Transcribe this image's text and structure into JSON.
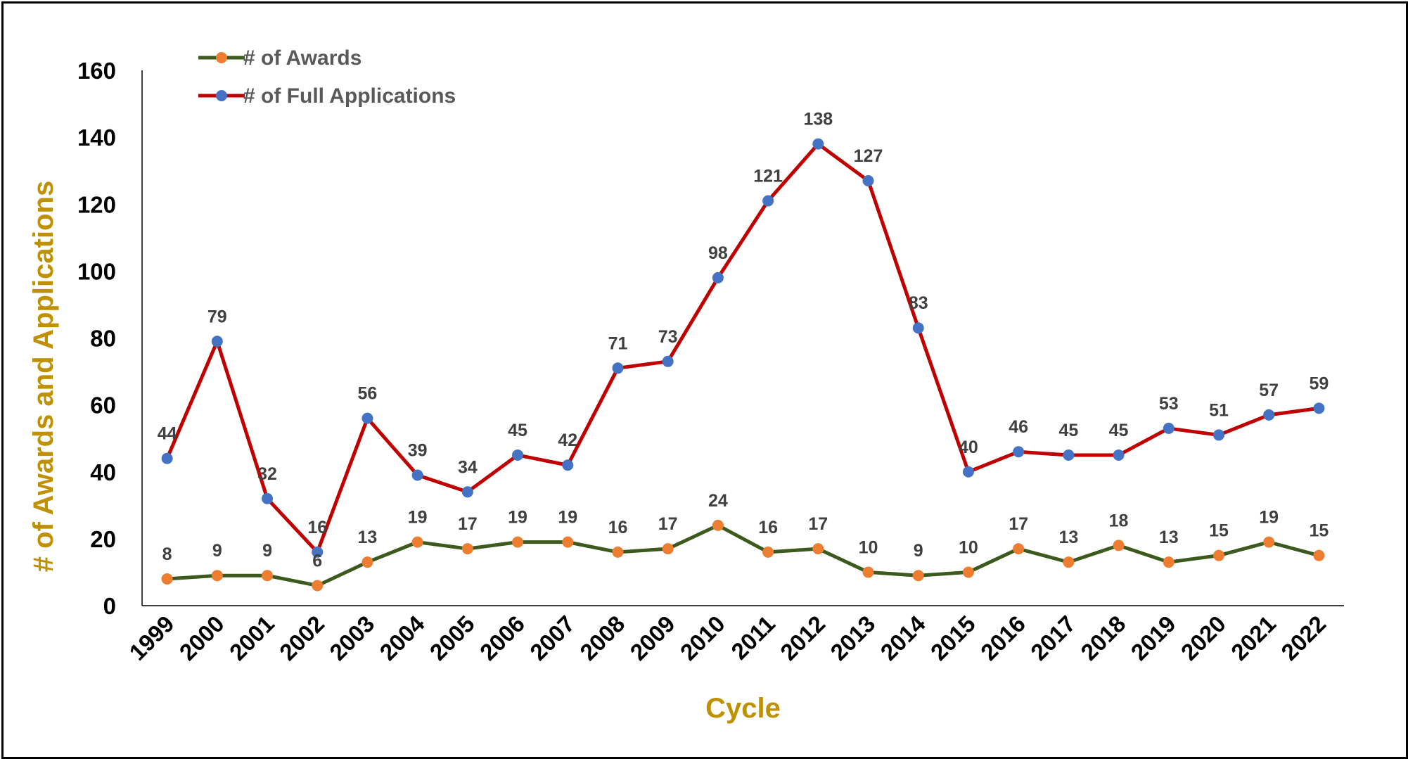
{
  "chart_data": {
    "type": "line",
    "title": "",
    "xlabel": "Cycle",
    "ylabel": "# of Awards and Applications",
    "categories": [
      "1999",
      "2000",
      "2001",
      "2002",
      "2003",
      "2004",
      "2005",
      "2006",
      "2007",
      "2008",
      "2009",
      "2010",
      "2011",
      "2012",
      "2013",
      "2014",
      "2015",
      "2016",
      "2017",
      "2018",
      "2019",
      "2020",
      "2021",
      "2022"
    ],
    "series": [
      {
        "name": "# of Awards",
        "values": [
          8,
          9,
          9,
          6,
          13,
          19,
          17,
          19,
          19,
          16,
          17,
          24,
          16,
          17,
          10,
          9,
          10,
          17,
          13,
          18,
          13,
          15,
          19,
          15
        ],
        "line_color": "#3d5a1e",
        "marker_color": "#ed7d31"
      },
      {
        "name": "# of Full Applications",
        "values": [
          44,
          79,
          32,
          16,
          56,
          39,
          34,
          45,
          42,
          71,
          73,
          98,
          121,
          138,
          127,
          83,
          40,
          46,
          45,
          45,
          53,
          51,
          57,
          59
        ],
        "line_color": "#c00000",
        "marker_color": "#4472c4"
      }
    ],
    "ylim": [
      0,
      160
    ],
    "yticks": [
      0,
      20,
      40,
      60,
      80,
      100,
      120,
      140,
      160
    ],
    "grid": false,
    "legend_position": "top-left",
    "axis_title_color": "#bf9000"
  }
}
